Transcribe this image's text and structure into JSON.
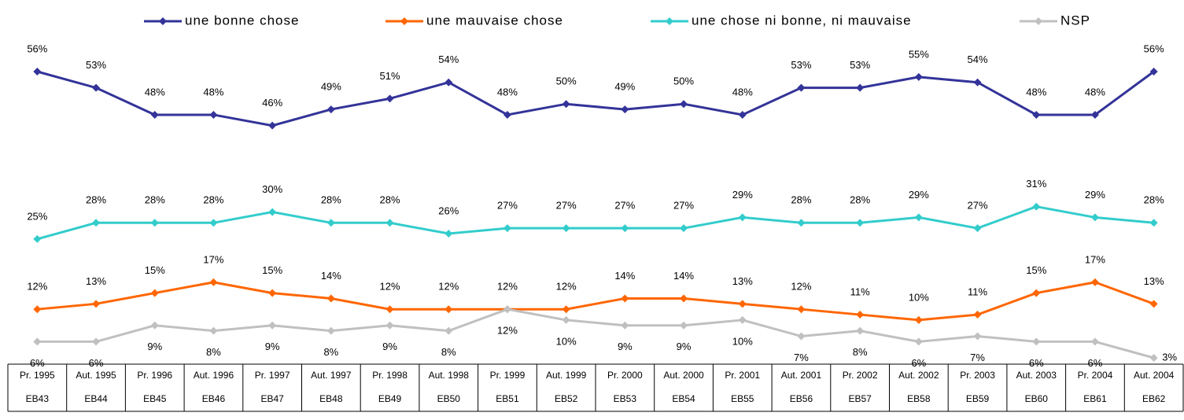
{
  "chart_data": {
    "type": "line",
    "categories": [
      "Pr. 1995",
      "Aut. 1995",
      "Pr. 1996",
      "Aut. 1996",
      "Pr. 1997",
      "Aut. 1997",
      "Pr. 1998",
      "Aut. 1998",
      "Pr. 1999",
      "Aut. 1999",
      "Pr. 2000",
      "Aut. 2000",
      "Pr. 2001",
      "Aut. 2001",
      "Pr. 2002",
      "Aut. 2002",
      "Pr. 2003",
      "Aut. 2003",
      "Pr. 2004",
      "Aut. 2004"
    ],
    "codes": [
      "EB43",
      "EB44",
      "EB45",
      "EB46",
      "EB47",
      "EB48",
      "EB49",
      "EB50",
      "EB51",
      "EB52",
      "EB53",
      "EB54",
      "EB55",
      "EB56",
      "EB57",
      "EB58",
      "EB59",
      "EB60",
      "EB61",
      "EB62"
    ],
    "series": [
      {
        "name": "une bonne chose",
        "color": "#333399",
        "label_side": "above",
        "values": [
          56,
          53,
          48,
          48,
          46,
          49,
          51,
          54,
          48,
          50,
          49,
          50,
          48,
          53,
          53,
          55,
          54,
          48,
          48,
          56
        ],
        "value_labels": [
          "56%",
          "53%",
          "48%",
          "48%",
          "46%",
          "49%",
          "51%",
          "54%",
          "48%",
          "50%",
          "49%",
          "50%",
          "48%",
          "53%",
          "53%",
          "55%",
          "54%",
          "48%",
          "48%",
          "56%"
        ]
      },
      {
        "name": "une mauvaise chose",
        "color": "#ff6600",
        "label_side": "above",
        "values": [
          12,
          13,
          15,
          17,
          15,
          14,
          12,
          12,
          12,
          12,
          14,
          14,
          13,
          12,
          11,
          10,
          11,
          15,
          17,
          13
        ],
        "value_labels": [
          "12%",
          "13%",
          "15%",
          "17%",
          "15%",
          "14%",
          "12%",
          "12%",
          "12%",
          "12%",
          "14%",
          "14%",
          "13%",
          "12%",
          "11%",
          "10%",
          "11%",
          "15%",
          "17%",
          "13%"
        ]
      },
      {
        "name": "une chose ni bonne, ni mauvaise",
        "color": "#33cccc",
        "label_side": "above",
        "values": [
          25,
          28,
          28,
          28,
          30,
          28,
          28,
          26,
          27,
          27,
          27,
          27,
          29,
          28,
          28,
          29,
          27,
          31,
          29,
          28
        ],
        "value_labels": [
          "25%",
          "28%",
          "28%",
          "28%",
          "30%",
          "28%",
          "28%",
          "26%",
          "27%",
          "27%",
          "27%",
          "27%",
          "29%",
          "28%",
          "28%",
          "29%",
          "27%",
          "31%",
          "29%",
          "28%"
        ]
      },
      {
        "name": "NSP",
        "color": "#c0c0c0",
        "label_side": "below",
        "values": [
          6,
          6,
          9,
          8,
          9,
          8,
          9,
          8,
          12,
          10,
          9,
          9,
          10,
          7,
          8,
          6,
          7,
          6,
          6,
          3
        ],
        "value_labels": [
          "6%",
          "6%",
          "9%",
          "8%",
          "9%",
          "8%",
          "9%",
          "8%",
          "12%",
          "10%",
          "9%",
          "9%",
          "10%",
          "7%",
          "8%",
          "6%",
          "7%",
          "6%",
          "6%",
          "3%"
        ]
      }
    ]
  }
}
